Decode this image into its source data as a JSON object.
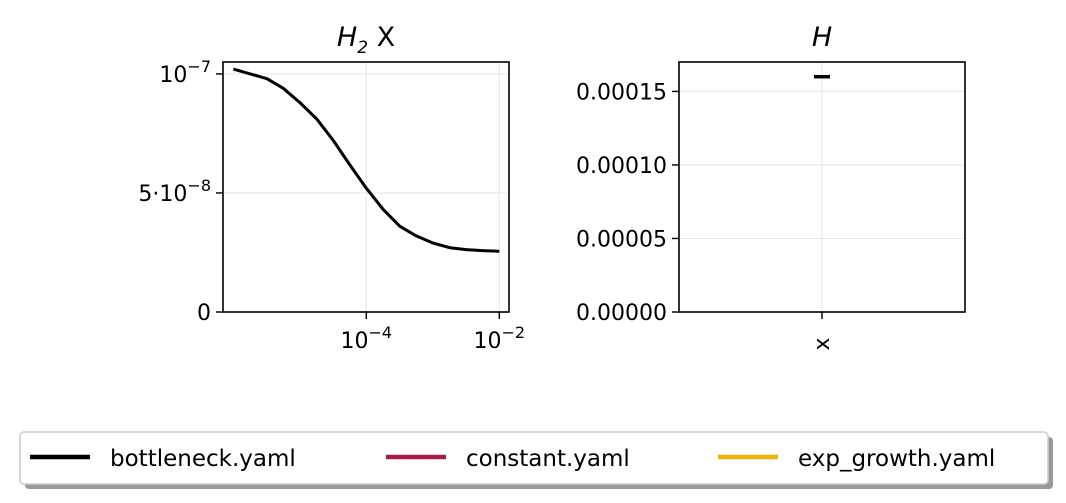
{
  "chart_data": [
    {
      "type": "line",
      "title_main": "H",
      "title_sub": "2",
      "title_rest": " X",
      "xscale": "log",
      "x_ticks": [
        {
          "value": 0.0001,
          "base": "10",
          "exp": "−4"
        },
        {
          "value": 0.01,
          "base": "10",
          "exp": "−2"
        }
      ],
      "y_ticks": [
        {
          "value": 0,
          "label": "0",
          "exp": ""
        },
        {
          "value": 5e-08,
          "label": "5·10",
          "exp": "−8"
        },
        {
          "value": 1e-07,
          "label": "10",
          "exp": "−7"
        }
      ],
      "xlim": [
        7e-07,
        0.014
      ],
      "ylim": [
        0,
        1.05e-07
      ],
      "grid": true,
      "series": [
        {
          "color": "#000000",
          "x": [
            1e-06,
            1.8e-06,
            3.2e-06,
            5.6e-06,
            1e-05,
            1.8e-05,
            3.2e-05,
            5.6e-05,
            0.0001,
            0.00018,
            0.00032,
            0.00056,
            0.001,
            0.0018,
            0.0032,
            0.0056,
            0.01
          ],
          "y": [
            1.02e-07,
            1e-07,
            9.8e-08,
            9.4e-08,
            8.8e-08,
            8.1e-08,
            7.2e-08,
            6.2e-08,
            5.2e-08,
            4.3e-08,
            3.6e-08,
            3.2e-08,
            2.9e-08,
            2.7e-08,
            2.62e-08,
            2.58e-08,
            2.55e-08
          ]
        }
      ]
    },
    {
      "type": "scatter",
      "title": "H",
      "categories": [
        "x"
      ],
      "y_ticks": [
        {
          "value": 0,
          "label": "0.00000"
        },
        {
          "value": 5e-05,
          "label": "0.00005"
        },
        {
          "value": 0.0001,
          "label": "0.00010"
        },
        {
          "value": 0.00015,
          "label": "0.00015"
        }
      ],
      "ylim": [
        0,
        0.00017
      ],
      "grid": true,
      "series": [
        {
          "color": "#000000",
          "marker": "hline",
          "points": [
            {
              "x": "x",
              "y": 0.00016
            }
          ]
        }
      ]
    }
  ],
  "legend": {
    "placement": "bottom",
    "entries": [
      {
        "label": "bottleneck.yaml",
        "color": "#000000"
      },
      {
        "label": "constant.yaml",
        "color": "#a51c4a"
      },
      {
        "label": "exp_growth.yaml",
        "color": "#eab308"
      }
    ]
  }
}
